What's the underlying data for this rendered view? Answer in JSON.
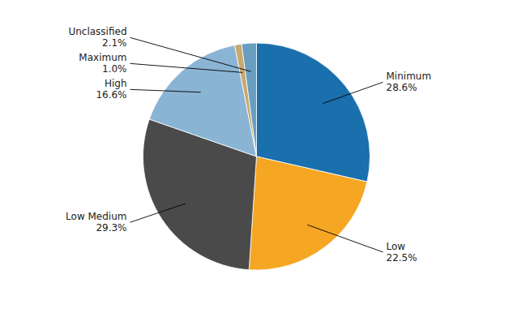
{
  "chart_data": {
    "type": "pie",
    "categories": [
      "Minimum",
      "Low",
      "Low Medium",
      "High",
      "Maximum",
      "Unclassified"
    ],
    "values": [
      28.6,
      22.5,
      29.3,
      16.6,
      1.0,
      2.1
    ],
    "value_labels": [
      "28.6%",
      "22.5%",
      "29.3%",
      "16.6%",
      "1.0%",
      "2.1%"
    ],
    "colors": [
      "#1a6fad",
      "#f5a623",
      "#4a4a4a",
      "#8ab4d4",
      "#c8a96e",
      "#6a9ec0"
    ],
    "data_labels": true
  }
}
